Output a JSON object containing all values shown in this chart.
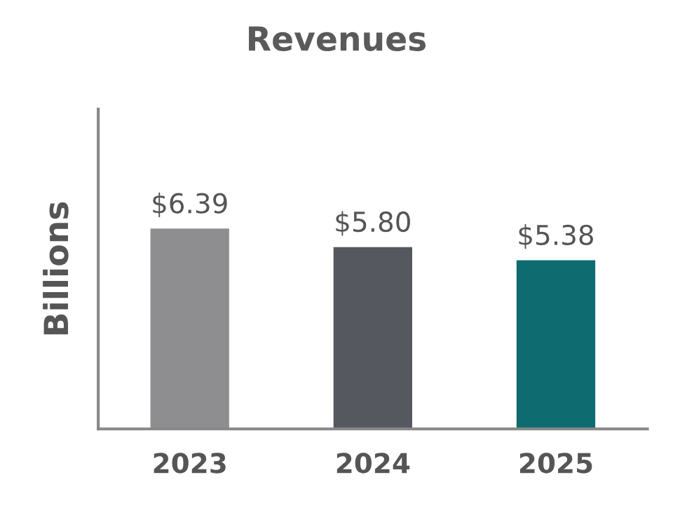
{
  "chart_data": {
    "type": "bar",
    "title": "Revenues",
    "ylabel": "Billions",
    "categories": [
      "2023",
      "2024",
      "2025"
    ],
    "values": [
      6.39,
      5.8,
      5.38
    ],
    "colors": [
      "#8e8e90",
      "#55585e",
      "#0e6b70"
    ],
    "value_labels": [
      "$6.39",
      "$5.80",
      "$5.38"
    ],
    "ylim": [
      0,
      10.2
    ],
    "grid": false,
    "legend": false
  }
}
